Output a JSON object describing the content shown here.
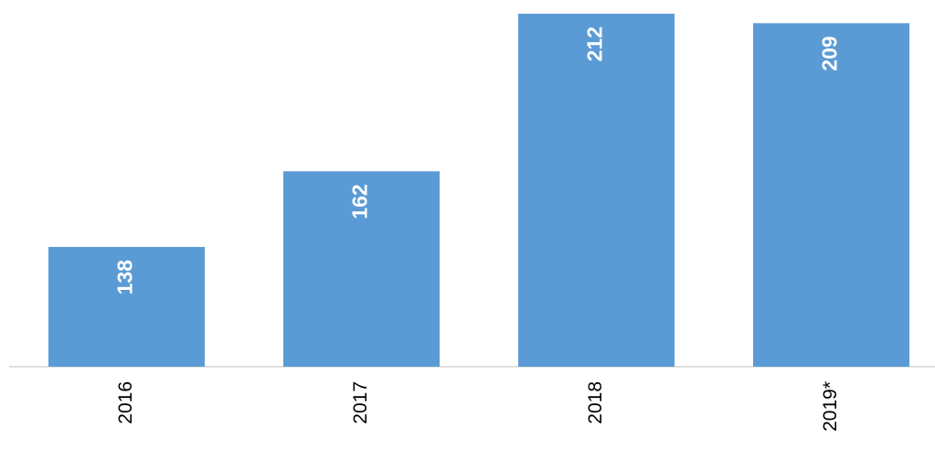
{
  "chart_data": {
    "type": "bar",
    "categories": [
      "2016",
      "2017",
      "2018",
      "2019*"
    ],
    "values": [
      138,
      162,
      212,
      209
    ],
    "color": "#5b9bd5",
    "ylim": [
      100,
      212
    ]
  }
}
